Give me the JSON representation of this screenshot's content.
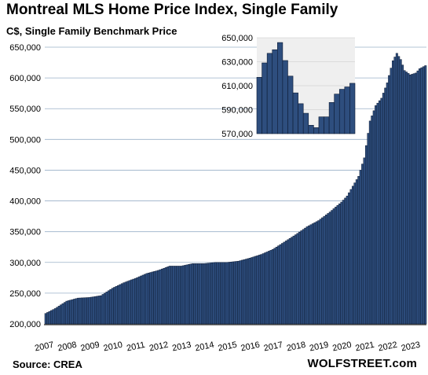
{
  "title": "Montreal MLS Home Price Index, Single Family",
  "subtitle": "C$, Single Family Benchmark Price",
  "source": "Source: CREA",
  "brand": "WOLFSTREET.com",
  "colors": {
    "bar_fill": "#2e4e7e",
    "bar_edge": "#0d1b33",
    "inset_bg": "#efefef",
    "grid": "#9ab0c8"
  },
  "chart_data": {
    "type": "bar",
    "ylim": [
      200000,
      650000
    ],
    "yticks": [
      200000,
      250000,
      300000,
      350000,
      400000,
      450000,
      500000,
      550000,
      600000,
      650000
    ],
    "xtick_labels": [
      "2007",
      "2008",
      "2009",
      "2010",
      "2011",
      "2012",
      "2013",
      "2014",
      "2015",
      "2016",
      "2017",
      "2018",
      "2019",
      "2020",
      "2021",
      "2022",
      "2023"
    ],
    "series": [
      {
        "frequency": "monthly",
        "start": "2007-01",
        "end": "2023-08",
        "anchors": [
          [
            "2007-01",
            217000
          ],
          [
            "2007-06",
            225000
          ],
          [
            "2007-12",
            237000
          ],
          [
            "2008-06",
            242000
          ],
          [
            "2008-12",
            243000
          ],
          [
            "2009-06",
            246000
          ],
          [
            "2009-12",
            258000
          ],
          [
            "2010-06",
            267000
          ],
          [
            "2010-12",
            274000
          ],
          [
            "2011-06",
            282000
          ],
          [
            "2011-12",
            287000
          ],
          [
            "2012-06",
            294000
          ],
          [
            "2012-12",
            294000
          ],
          [
            "2013-06",
            298000
          ],
          [
            "2013-12",
            298000
          ],
          [
            "2014-06",
            300000
          ],
          [
            "2014-12",
            300000
          ],
          [
            "2015-06",
            302000
          ],
          [
            "2015-12",
            307000
          ],
          [
            "2016-06",
            313000
          ],
          [
            "2016-12",
            321000
          ],
          [
            "2017-06",
            333000
          ],
          [
            "2017-12",
            345000
          ],
          [
            "2018-06",
            358000
          ],
          [
            "2018-12",
            368000
          ],
          [
            "2019-06",
            382000
          ],
          [
            "2019-12",
            398000
          ],
          [
            "2020-03",
            408000
          ],
          [
            "2020-06",
            424000
          ],
          [
            "2020-09",
            440000
          ],
          [
            "2020-12",
            470000
          ],
          [
            "2021-03",
            530000
          ],
          [
            "2021-06",
            555000
          ],
          [
            "2021-09",
            567000
          ],
          [
            "2021-12",
            592000
          ],
          [
            "2022-03",
            628000
          ],
          [
            "2022-05",
            640000
          ],
          [
            "2022-07",
            630000
          ],
          [
            "2022-09",
            612000
          ],
          [
            "2022-12",
            605000
          ],
          [
            "2023-03",
            608000
          ],
          [
            "2023-05",
            615000
          ],
          [
            "2023-08",
            620000
          ]
        ]
      }
    ],
    "inset": {
      "ylim": [
        570000,
        650000
      ],
      "yticks": [
        570000,
        590000,
        610000,
        630000,
        650000
      ],
      "values": [
        617000,
        629000,
        637000,
        640000,
        646000,
        631000,
        618000,
        604000,
        595000,
        587000,
        577000,
        575000,
        584000,
        584000,
        596000,
        603000,
        607000,
        609000,
        612000
      ]
    }
  }
}
